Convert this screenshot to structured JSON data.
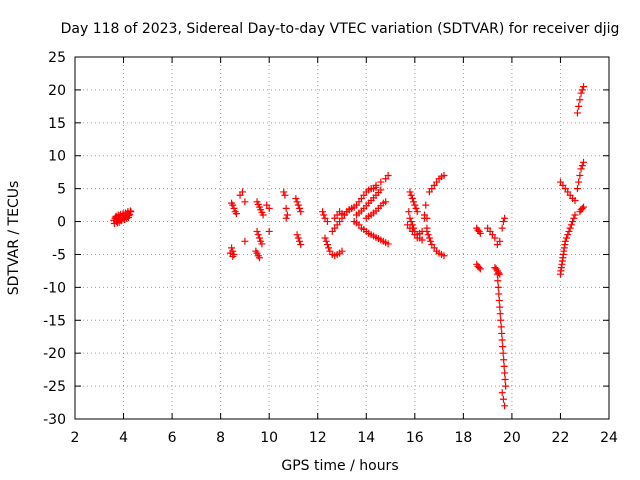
{
  "chart_data": {
    "type": "scatter",
    "title": "Day 118 of 2023, Sidereal Day-to-day VTEC variation (SDTVAR) for receiver djig",
    "xlabel": "GPS time / hours",
    "ylabel": "SDTVAR / TECUs",
    "xlim": [
      2,
      24
    ],
    "ylim": [
      -30,
      25
    ],
    "x_ticks": [
      2,
      4,
      6,
      8,
      10,
      12,
      14,
      16,
      18,
      20,
      22,
      24
    ],
    "x_tick_labels": [
      "2",
      "4",
      "6",
      "8",
      "10",
      "12",
      "14",
      "16",
      "18",
      "20",
      "22",
      "24"
    ],
    "y_ticks": [
      25,
      20,
      15,
      10,
      5,
      0,
      -5,
      -10,
      -15,
      -20,
      -25,
      -30
    ],
    "y_tick_labels": [
      "25",
      "20",
      "15",
      "10",
      "5",
      "0",
      "-5",
      "-10",
      "-15",
      "-20",
      "-25",
      "-30"
    ],
    "grid": true,
    "marker": "+",
    "marker_color": "#ff0000",
    "series": [
      {
        "name": "SDTVAR",
        "x": [
          3.6,
          3.65,
          3.7,
          3.75,
          3.8,
          3.85,
          3.9,
          3.95,
          4.0,
          4.05,
          4.1,
          4.15,
          4.2,
          4.25,
          4.3,
          3.62,
          3.72,
          3.82,
          3.92,
          4.02,
          4.12,
          4.22,
          3.68,
          3.78,
          3.88,
          3.98,
          4.08,
          4.18,
          4.28,
          8.45,
          8.5,
          8.55,
          8.6,
          8.65,
          8.45,
          8.5,
          8.55,
          8.4,
          8.5,
          8.8,
          8.9,
          9.0,
          9.0,
          9.5,
          9.55,
          9.6,
          9.65,
          9.7,
          9.75,
          9.5,
          9.55,
          9.6,
          9.65,
          9.7,
          9.45,
          9.5,
          9.55,
          9.6,
          9.9,
          10.0,
          10.0,
          10.6,
          10.65,
          10.7,
          10.75,
          10.7,
          11.1,
          11.15,
          11.2,
          11.25,
          11.3,
          11.15,
          11.2,
          11.25,
          11.3,
          12.2,
          12.25,
          12.3,
          12.4,
          12.3,
          12.35,
          12.4,
          12.45,
          12.5,
          12.6,
          12.7,
          12.8,
          12.9,
          13.0,
          12.6,
          12.7,
          12.8,
          12.9,
          13.0,
          13.1,
          13.2,
          13.3,
          13.4,
          12.7,
          12.8,
          12.9,
          13.0,
          13.1,
          13.2,
          13.3,
          13.4,
          13.5,
          13.6,
          13.7,
          13.8,
          13.9,
          14.0,
          14.1,
          14.2,
          14.3,
          14.4,
          13.6,
          13.7,
          13.8,
          13.9,
          14.0,
          14.1,
          14.2,
          14.3,
          14.4,
          14.5,
          14.6,
          13.5,
          13.6,
          13.7,
          13.8,
          13.9,
          14.0,
          14.1,
          14.2,
          14.3,
          14.4,
          14.5,
          14.6,
          14.7,
          14.8,
          14.9,
          14.0,
          14.1,
          14.2,
          14.3,
          14.4,
          14.5,
          14.6,
          14.7,
          14.8,
          14.2,
          14.4,
          14.6,
          14.8,
          14.9,
          15.8,
          15.85,
          15.9,
          15.95,
          16.0,
          16.05,
          16.1,
          15.75,
          15.8,
          15.85,
          15.9,
          15.95,
          16.0,
          16.1,
          16.2,
          16.3,
          15.7,
          15.8,
          15.9,
          16.0,
          16.1,
          16.2,
          16.3,
          16.4,
          16.5,
          16.6,
          16.7,
          16.8,
          16.9,
          17.0,
          17.1,
          17.2,
          16.5,
          16.55,
          16.6,
          16.65,
          16.7,
          16.8,
          16.9,
          17.0,
          17.1,
          17.2,
          16.4,
          16.5,
          16.45,
          18.55,
          18.6,
          18.65,
          18.7,
          18.55,
          18.6,
          18.65,
          18.7,
          19.0,
          19.1,
          19.2,
          19.3,
          19.4,
          19.5,
          19.6,
          19.65,
          19.7,
          19.3,
          19.35,
          19.4,
          19.45,
          19.5,
          19.4,
          19.42,
          19.44,
          19.46,
          19.48,
          19.5,
          19.52,
          19.54,
          19.56,
          19.58,
          19.6,
          19.62,
          19.64,
          19.66,
          19.68,
          19.7,
          19.72,
          19.74,
          19.6,
          19.65,
          19.7,
          22.0,
          22.02,
          22.04,
          22.06,
          22.08,
          22.1,
          22.12,
          22.14,
          22.16,
          22.18,
          22.2,
          22.25,
          22.3,
          22.35,
          22.4,
          22.45,
          22.5,
          22.55,
          22.6,
          22.0,
          22.1,
          22.2,
          22.3,
          22.4,
          22.5,
          22.6,
          22.7,
          22.75,
          22.8,
          22.85,
          22.9,
          22.95,
          22.7,
          22.75,
          22.8,
          22.85,
          22.9,
          22.95,
          22.8,
          22.85,
          22.9,
          22.95
        ],
        "y": [
          0.2,
          0.5,
          0.8,
          -0.2,
          0.4,
          0.9,
          0.1,
          0.6,
          1.0,
          0.3,
          0.8,
          1.2,
          0.6,
          1.1,
          1.5,
          -0.3,
          0.0,
          -0.1,
          0.2,
          0.4,
          0.5,
          0.9,
          0.7,
          1.0,
          1.1,
          1.2,
          1.3,
          1.5,
          1.6,
          2.8,
          2.5,
          2.0,
          1.5,
          1.2,
          -4.0,
          -4.5,
          -5.0,
          -4.8,
          -5.3,
          4.0,
          4.5,
          3.0,
          -3.0,
          3.0,
          2.6,
          2.2,
          1.8,
          1.4,
          1.0,
          -1.5,
          -2.0,
          -2.5,
          -3.0,
          -3.4,
          -4.5,
          -4.8,
          -5.2,
          -5.5,
          2.5,
          2.0,
          -1.5,
          4.5,
          4.0,
          2.0,
          1.0,
          0.5,
          3.5,
          3.0,
          2.5,
          2.0,
          1.5,
          -2.0,
          -2.5,
          -3.0,
          -3.5,
          1.5,
          1.0,
          0.5,
          0.0,
          -2.5,
          -3.0,
          -3.5,
          -4.0,
          -4.5,
          -5.0,
          -5.2,
          -5.0,
          -4.8,
          -4.5,
          -1.5,
          -1.0,
          -0.5,
          0.0,
          0.5,
          1.0,
          1.5,
          1.8,
          2.0,
          0.5,
          1.0,
          1.5,
          1.2,
          1.0,
          1.5,
          1.8,
          2.0,
          2.2,
          2.5,
          3.0,
          3.5,
          4.0,
          4.5,
          4.8,
          5.0,
          5.0,
          5.2,
          1.0,
          1.3,
          1.6,
          2.0,
          2.4,
          2.8,
          3.2,
          3.6,
          4.0,
          4.4,
          4.8,
          0.0,
          -0.2,
          -0.5,
          -1.0,
          -1.2,
          -1.5,
          -1.8,
          -2.0,
          -2.2,
          -2.4,
          -2.6,
          -2.8,
          -3.0,
          -3.2,
          -3.4,
          0.5,
          0.8,
          1.0,
          1.3,
          1.6,
          2.0,
          2.4,
          2.8,
          3.0,
          5.0,
          5.5,
          6.0,
          6.5,
          7.0,
          4.5,
          4.0,
          3.5,
          3.0,
          2.5,
          2.0,
          1.5,
          1.5,
          0.5,
          0.0,
          -0.5,
          -1.0,
          -1.5,
          -2.0,
          -2.5,
          -2.8,
          -0.5,
          -1.0,
          -1.5,
          -2.0,
          -2.5,
          -1.8,
          -1.5,
          0.5,
          -1.0,
          4.5,
          5.0,
          5.5,
          6.0,
          6.5,
          6.8,
          7.0,
          -1.5,
          -2.0,
          -2.5,
          -3.0,
          -3.5,
          -4.0,
          -4.5,
          -4.8,
          -5.0,
          -5.2,
          1.0,
          0.5,
          2.5,
          -1.0,
          -1.3,
          -1.5,
          -1.8,
          -6.5,
          -6.8,
          -7.0,
          -7.2,
          -1.0,
          -1.5,
          -2.0,
          -2.5,
          -3.5,
          -3.0,
          -1.0,
          0.0,
          0.5,
          -7.0,
          -7.2,
          -7.5,
          -7.8,
          -8.0,
          -8.0,
          -9.0,
          -10.0,
          -11.0,
          -12.0,
          -13.0,
          -14.0,
          -15.0,
          -16.0,
          -17.0,
          -18.0,
          -19.0,
          -20.0,
          -21.0,
          -22.0,
          -23.0,
          -24.0,
          -25.0,
          -26.0,
          -27.0,
          -28.0,
          -8.0,
          -7.5,
          -7.0,
          -6.5,
          -6.0,
          -5.5,
          -5.0,
          -4.5,
          -4.0,
          -3.5,
          -3.0,
          -2.5,
          -2.0,
          -1.5,
          -1.0,
          -0.5,
          0.0,
          0.5,
          1.0,
          6.0,
          5.5,
          5.0,
          4.5,
          4.0,
          3.5,
          3.2,
          5.0,
          6.0,
          7.0,
          8.0,
          8.5,
          9.0,
          16.5,
          17.5,
          18.5,
          19.5,
          20.0,
          20.5,
          1.5,
          1.8,
          2.0,
          2.2
        ]
      }
    ]
  }
}
